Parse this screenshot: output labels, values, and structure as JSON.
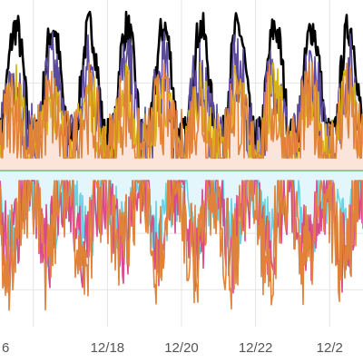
{
  "chart_data": {
    "type": "line",
    "title": "",
    "xlabel": "",
    "ylabel": "",
    "x_ticks": [
      "6",
      "12/18",
      "12/20",
      "12/22",
      "12/2"
    ],
    "xlim_days": [
      15.1,
      24.9
    ],
    "ylim": [
      -1.1,
      1.05
    ],
    "grid": true,
    "legend": "none",
    "colors": {
      "upper_fill": "#fbe4da",
      "lower_fill": "#e3f6fb",
      "zero_line": "#8fc79a",
      "grid": "#e4e4e4"
    },
    "series": [
      {
        "color": "#000000",
        "amplitude": 0.9,
        "roughness": 0.04,
        "side": "upper"
      },
      {
        "color": "#5c4a9e",
        "amplitude": 0.62,
        "roughness": 0.09,
        "side": "upper"
      },
      {
        "color": "#d9b21a",
        "amplitude": 0.48,
        "roughness": 0.07,
        "side": "upper"
      },
      {
        "color": "#e0823a",
        "amplitude": 0.4,
        "roughness": 0.1,
        "side": "upper"
      },
      {
        "color": "#6cd2e2",
        "amplitude": 0.52,
        "roughness": 0.1,
        "side": "lower"
      },
      {
        "color": "#d94a8c",
        "amplitude": 0.62,
        "roughness": 0.12,
        "side": "lower"
      },
      {
        "color": "#e0823a",
        "amplitude": 0.7,
        "roughness": 0.14,
        "side": "lower"
      }
    ]
  }
}
